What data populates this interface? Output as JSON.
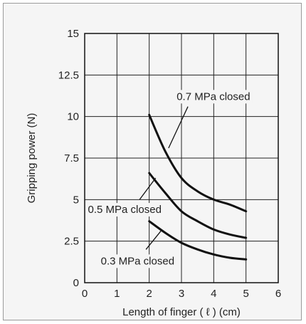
{
  "chart_data": {
    "type": "line",
    "title": "",
    "xlabel": "Length of finger ( ℓ ) (cm)",
    "ylabel": "Gripping power (N)",
    "xlim": [
      0,
      6
    ],
    "ylim": [
      0,
      15
    ],
    "x_ticks": [
      "0",
      "1",
      "2",
      "3",
      "4",
      "5",
      "6"
    ],
    "y_ticks": [
      "0",
      "2.5",
      "5",
      "7.5",
      "10",
      "12.5",
      "15"
    ],
    "grid": true,
    "series": [
      {
        "name": "0.7 MPa closed",
        "x": [
          2.0,
          2.5,
          3.0,
          3.5,
          4.0,
          4.5,
          5.0
        ],
        "y": [
          10.1,
          7.9,
          6.3,
          5.5,
          5.0,
          4.7,
          4.3
        ]
      },
      {
        "name": "0.5 MPa closed",
        "x": [
          2.0,
          2.5,
          3.0,
          3.5,
          4.0,
          4.5,
          5.0
        ],
        "y": [
          6.6,
          5.4,
          4.3,
          3.7,
          3.2,
          2.9,
          2.7
        ]
      },
      {
        "name": "0.3 MPa closed",
        "x": [
          2.0,
          2.5,
          3.0,
          3.5,
          4.0,
          4.5,
          5.0
        ],
        "y": [
          3.7,
          3.0,
          2.4,
          2.0,
          1.7,
          1.5,
          1.4
        ]
      }
    ]
  }
}
